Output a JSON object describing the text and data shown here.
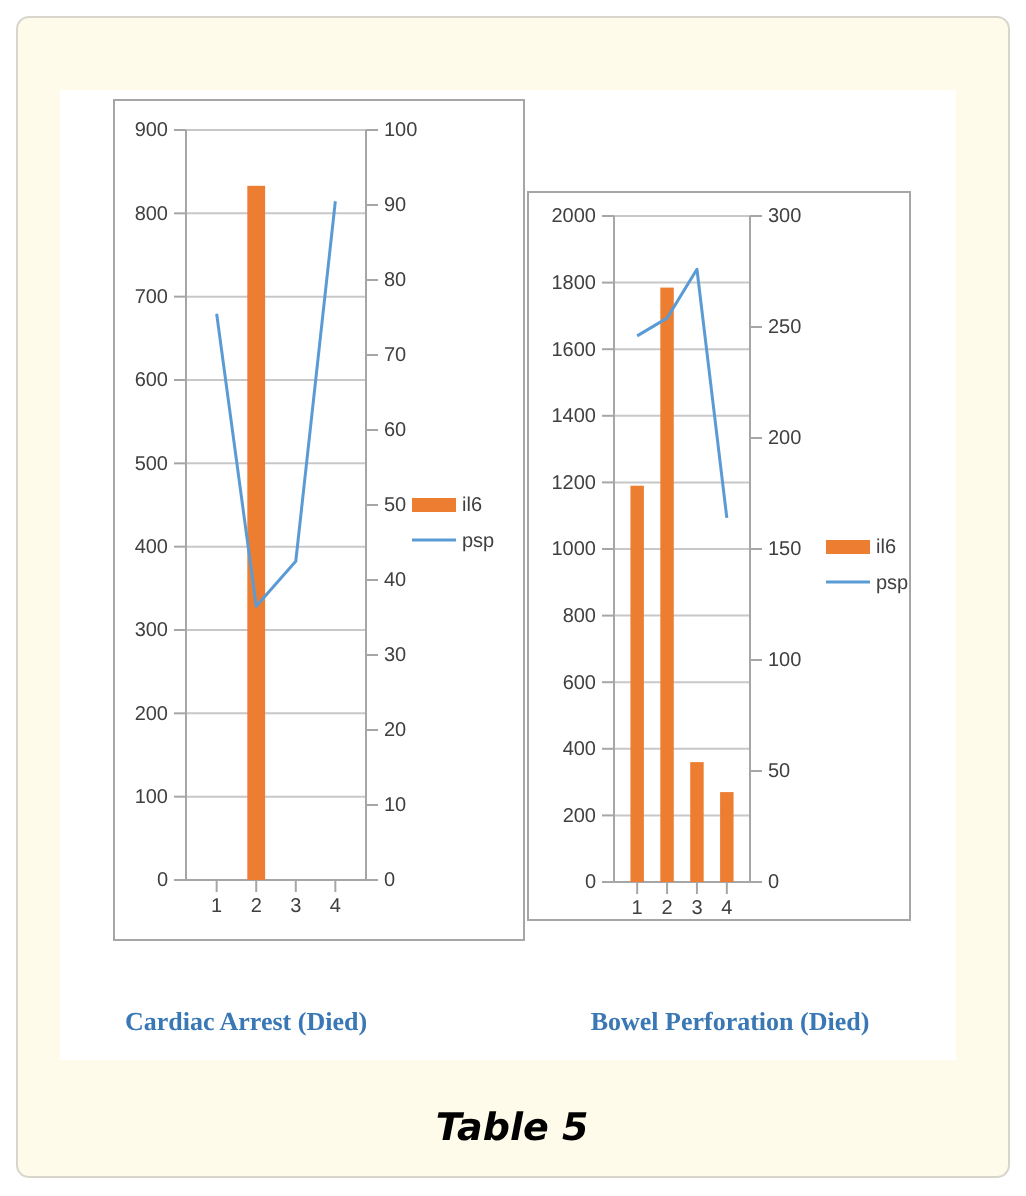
{
  "chart_data": [
    {
      "type": "bar",
      "xlabel": "Cardiac Arrest (Died)",
      "categories": [
        "1",
        "2",
        "3",
        "4"
      ],
      "ylim": [
        0,
        900
      ],
      "yticks": [
        0,
        100,
        200,
        300,
        400,
        500,
        600,
        700,
        800,
        900
      ],
      "y2lim": [
        0,
        100
      ],
      "y2ticks": [
        0,
        10,
        20,
        30,
        40,
        50,
        60,
        70,
        80,
        90,
        100
      ],
      "grid": "y",
      "legend": "right",
      "series": [
        {
          "name": "il6",
          "type": "bar",
          "color": "#ed7d31",
          "values": [
            null,
            833,
            null,
            null
          ]
        },
        {
          "name": "psp",
          "type": "line",
          "axis": "y2",
          "color": "#5b9bd5",
          "values": [
            75.5,
            36.5,
            42.5,
            90.5
          ]
        }
      ]
    },
    {
      "type": "bar",
      "xlabel": "Bowel Perforation (Died)",
      "categories": [
        "1",
        "2",
        "3",
        "4"
      ],
      "ylim": [
        0,
        2000
      ],
      "yticks": [
        0,
        200,
        400,
        600,
        800,
        1000,
        1200,
        1400,
        1600,
        1800,
        2000
      ],
      "y2lim": [
        0,
        300
      ],
      "y2ticks": [
        0,
        50,
        100,
        150,
        200,
        250,
        300
      ],
      "grid": "y",
      "legend": "right",
      "series": [
        {
          "name": "il6",
          "type": "bar",
          "color": "#ed7d31",
          "values": [
            1190,
            1785,
            360,
            270
          ]
        },
        {
          "name": "psp",
          "type": "line",
          "axis": "y2",
          "color": "#5b9bd5",
          "values": [
            246,
            254,
            276,
            164
          ]
        }
      ]
    },
    {
      "type": "other",
      "title": "Table 5"
    }
  ]
}
